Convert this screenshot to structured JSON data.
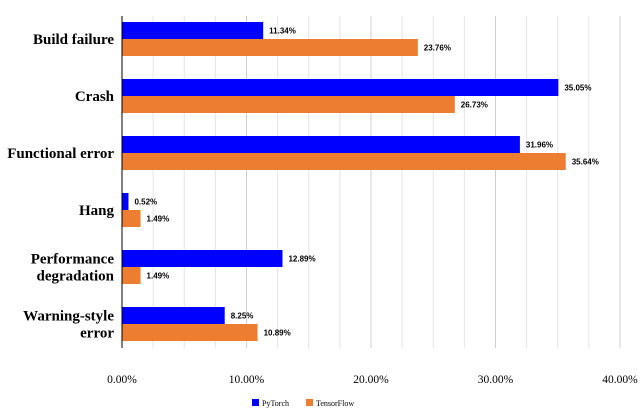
{
  "chart_data": {
    "type": "bar",
    "orientation": "horizontal",
    "categories": [
      [
        "Build failure"
      ],
      [
        "Crash"
      ],
      [
        "Functional error"
      ],
      [
        "Hang"
      ],
      [
        "Performance",
        "degradation"
      ],
      [
        "Warning-style",
        "error"
      ]
    ],
    "series": [
      {
        "name": "PyTorch",
        "color": "#0000ff",
        "values": [
          11.34,
          35.05,
          31.96,
          0.52,
          12.89,
          8.25
        ],
        "labels": [
          "11.34%",
          "35.05%",
          "31.96%",
          "0.52%",
          "12.89%",
          "8.25%"
        ]
      },
      {
        "name": "TensorFlow",
        "color": "#ed7d31",
        "values": [
          23.76,
          26.73,
          35.64,
          1.49,
          1.49,
          10.89
        ],
        "labels": [
          "23.76%",
          "26.73%",
          "35.64%",
          "1.49%",
          "1.49%",
          "10.89%"
        ]
      }
    ],
    "xlim": [
      0,
      40
    ],
    "xticks": [
      0,
      10,
      20,
      30,
      40
    ],
    "xtick_labels": [
      "0.00%",
      "10.00%",
      "20.00%",
      "30.00%",
      "40.00%"
    ],
    "grid": true,
    "legend": "bottom-center"
  }
}
